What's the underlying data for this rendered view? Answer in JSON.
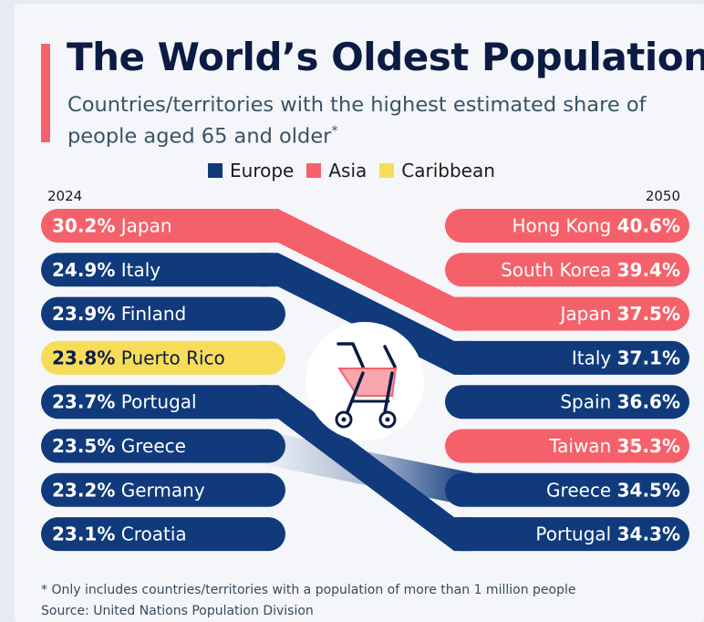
{
  "header": {
    "title": "The World’s Oldest Populations",
    "subtitle": "Countries/territories with the highest estimated share of people aged 65 and older",
    "subtitle_mark": "*"
  },
  "colors": {
    "Europe": "#103a7c",
    "Asia": "#f5616a",
    "Caribbean": "#f7dc5a",
    "accent": "#f5616a"
  },
  "legend": [
    {
      "label": "Europe",
      "key": "Europe"
    },
    {
      "label": "Asia",
      "key": "Asia"
    },
    {
      "label": "Caribbean",
      "key": "Caribbean"
    }
  ],
  "chart_data": {
    "type": "bar",
    "title": "The World’s Oldest Populations",
    "left_year": "2024",
    "right_year": "2050",
    "unit": "%",
    "left": [
      {
        "label": "Japan",
        "value": 30.2,
        "region": "Asia"
      },
      {
        "label": "Italy",
        "value": 24.9,
        "region": "Europe"
      },
      {
        "label": "Finland",
        "value": 23.9,
        "region": "Europe"
      },
      {
        "label": "Puerto Rico",
        "value": 23.8,
        "region": "Caribbean"
      },
      {
        "label": "Portugal",
        "value": 23.7,
        "region": "Europe"
      },
      {
        "label": "Greece",
        "value": 23.5,
        "region": "Europe"
      },
      {
        "label": "Germany",
        "value": 23.2,
        "region": "Europe"
      },
      {
        "label": "Croatia",
        "value": 23.1,
        "region": "Europe"
      }
    ],
    "right": [
      {
        "label": "Hong Kong",
        "value": 40.6,
        "region": "Asia"
      },
      {
        "label": "South Korea",
        "value": 39.4,
        "region": "Asia"
      },
      {
        "label": "Japan",
        "value": 37.5,
        "region": "Asia"
      },
      {
        "label": "Italy",
        "value": 37.1,
        "region": "Europe"
      },
      {
        "label": "Spain",
        "value": 36.6,
        "region": "Europe"
      },
      {
        "label": "Taiwan",
        "value": 35.3,
        "region": "Asia"
      },
      {
        "label": "Greece",
        "value": 34.5,
        "region": "Europe"
      },
      {
        "label": "Portugal",
        "value": 34.3,
        "region": "Europe"
      }
    ],
    "connections": [
      {
        "country": "Japan",
        "from_rank": 1,
        "to_rank": 3
      },
      {
        "country": "Italy",
        "from_rank": 2,
        "to_rank": 4
      },
      {
        "country": "Portugal",
        "from_rank": 5,
        "to_rank": 8
      },
      {
        "country": "Greece",
        "from_rank": 6,
        "to_rank": 7
      }
    ]
  },
  "footer": {
    "note": "* Only includes countries/territories with a population of more than 1 million people",
    "source": "Source: United Nations Population Division"
  }
}
